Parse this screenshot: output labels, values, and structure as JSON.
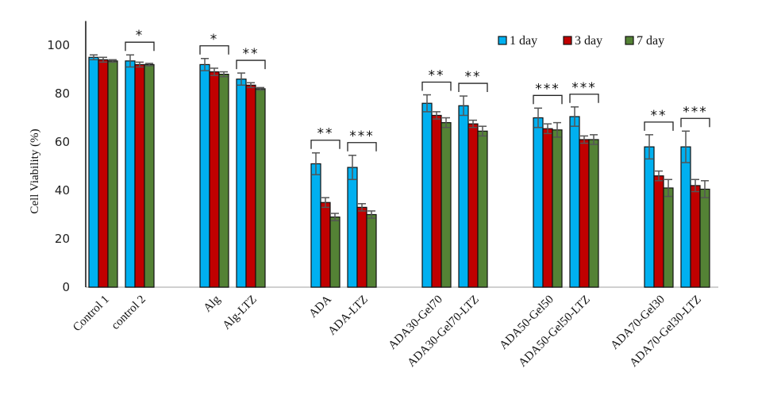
{
  "chart_data": {
    "type": "bar",
    "title": "",
    "xlabel": "",
    "ylabel": "Cell Viability (%)",
    "ylim": [
      0,
      110
    ],
    "yticks": [
      0,
      20,
      40,
      60,
      80,
      100
    ],
    "grid": false,
    "legend_position": "top-right",
    "categories": [
      "Control 1",
      "control 2",
      "Alg",
      "Alg-LTZ",
      "ADA",
      "ADA-LTZ",
      "ADA30-Gel70",
      "ADA30-Gel70-LTZ",
      "ADA50-Gel50",
      "ADA50-Gel50-LTZ",
      "ADA70-Gel30",
      "ADA70-Gel30-LTZ"
    ],
    "series": [
      {
        "name": "1 day",
        "color": "#00b0f0",
        "values": [
          95,
          93.5,
          92,
          86,
          51,
          49.5,
          76,
          75,
          70,
          70.5,
          58,
          58
        ],
        "errors": [
          1,
          2.5,
          2.5,
          2.5,
          4.5,
          5,
          3.5,
          4,
          4,
          4,
          5,
          6.5
        ]
      },
      {
        "name": "3 day",
        "color": "#c00000",
        "values": [
          94,
          92,
          89,
          83.5,
          35,
          33,
          71,
          67.5,
          65.5,
          61,
          46,
          42
        ],
        "errors": [
          1,
          1,
          1.5,
          1,
          2,
          1.5,
          1.5,
          1.5,
          2,
          1.5,
          2,
          2.5
        ]
      },
      {
        "name": "7 day",
        "color": "#548235",
        "values": [
          93.5,
          92,
          88,
          82,
          29,
          30,
          68,
          64.5,
          65,
          61,
          41,
          40.5
        ],
        "errors": [
          0.5,
          0.5,
          1,
          0.5,
          1.5,
          1.5,
          2,
          2,
          3,
          2,
          3.5,
          3.5
        ]
      }
    ],
    "significance": [
      "",
      "*",
      "*",
      "**",
      "**",
      "***",
      "**",
      "**",
      "***",
      "***",
      "**",
      "***"
    ]
  }
}
